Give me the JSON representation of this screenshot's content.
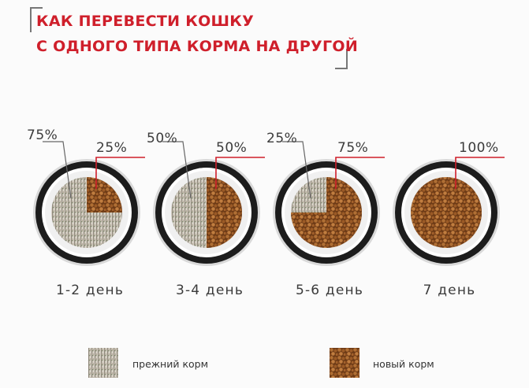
{
  "title": {
    "line1": "КАК ПЕРЕВЕСТИ КОШКУ",
    "line2": "С ОДНОГО ТИПА КОРМА НА ДРУГОЙ"
  },
  "stages": [
    {
      "old_label": "75%",
      "new_label": "25%",
      "old_share": 0.75,
      "new_share": 0.25,
      "day": "1-2 день"
    },
    {
      "old_label": "50%",
      "new_label": "50%",
      "old_share": 0.5,
      "new_share": 0.5,
      "day": "3-4 день"
    },
    {
      "old_label": "25%",
      "new_label": "75%",
      "old_share": 0.25,
      "new_share": 0.75,
      "day": "5-6 день"
    },
    {
      "old_label": "",
      "new_label": "100%",
      "old_share": 0.0,
      "new_share": 1.0,
      "day": "7 день"
    }
  ],
  "legend": {
    "old_food": "прежний корм",
    "new_food": "новый корм"
  },
  "colors": {
    "accent": "#cf1f2b",
    "old_food": "#b9b3a7",
    "new_food": "#9a5a2a",
    "bowl_rim": "#1c1c1c"
  }
}
